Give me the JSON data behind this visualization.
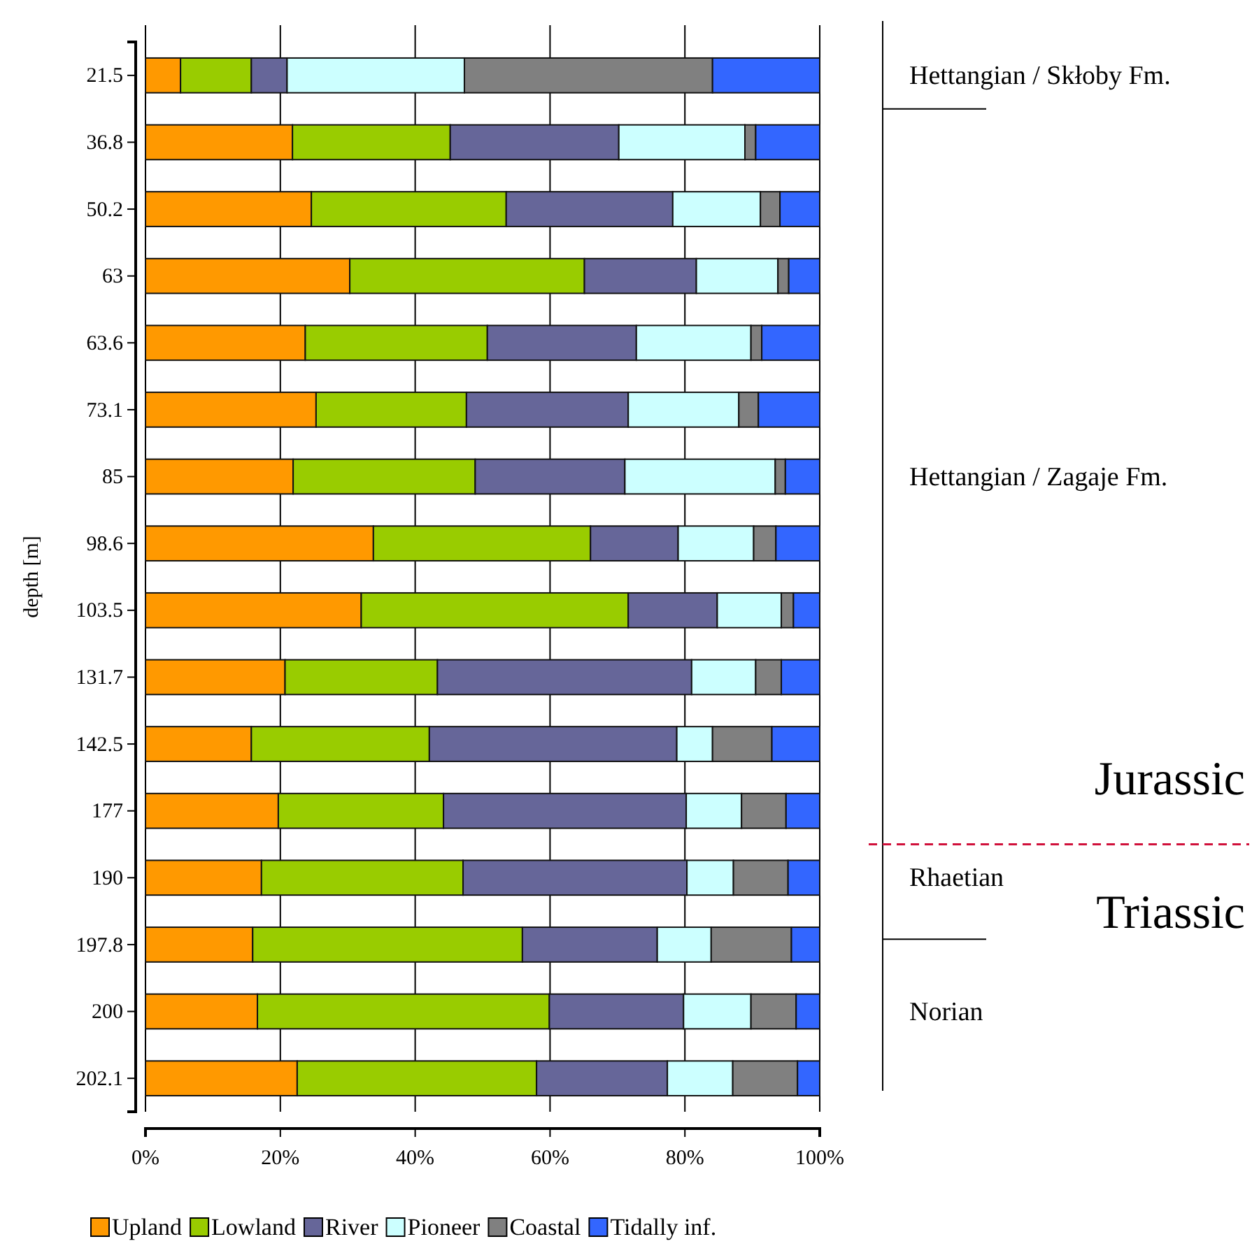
{
  "chart_data": {
    "type": "bar",
    "orientation": "horizontal",
    "stacked": true,
    "ylabel": "depth [m]",
    "categories": [
      "21.5",
      "36.8",
      "50.2",
      "63",
      "63.6",
      "73.1",
      "85",
      "98.6",
      "103.5",
      "131.7",
      "142.5",
      "177",
      "190",
      "197.8",
      "200",
      "202.1"
    ],
    "series": [
      {
        "name": "Upland",
        "color": "#ff9900",
        "values": [
          5.2,
          21.8,
          24.6,
          30.3,
          23.7,
          25.3,
          21.9,
          33.8,
          32.0,
          20.7,
          15.7,
          19.7,
          17.2,
          15.9,
          16.6,
          22.5
        ]
      },
      {
        "name": "Lowland",
        "color": "#99cc00",
        "values": [
          10.5,
          23.4,
          28.9,
          34.8,
          27.0,
          22.3,
          27.0,
          32.2,
          39.6,
          22.6,
          26.4,
          24.5,
          29.9,
          40.0,
          43.3,
          35.5
        ]
      },
      {
        "name": "River",
        "color": "#666699",
        "values": [
          5.3,
          25.0,
          24.7,
          16.6,
          22.1,
          24.0,
          22.2,
          13.0,
          13.2,
          37.7,
          36.7,
          36.0,
          33.2,
          20.0,
          19.9,
          19.4
        ]
      },
      {
        "name": "Pioneer",
        "color": "#ccffff",
        "values": [
          26.3,
          18.7,
          13.0,
          12.1,
          17.0,
          16.4,
          22.3,
          11.2,
          9.5,
          9.5,
          5.3,
          8.2,
          6.9,
          8.0,
          10.0,
          9.7
        ]
      },
      {
        "name": "Coastal",
        "color": "#808080",
        "values": [
          36.8,
          1.6,
          2.9,
          1.6,
          1.6,
          2.9,
          1.5,
          3.3,
          1.8,
          3.8,
          8.8,
          6.6,
          8.1,
          11.9,
          6.7,
          9.6
        ]
      },
      {
        "name": "Tidally inf.",
        "color": "#3366ff",
        "values": [
          15.9,
          9.5,
          5.9,
          4.6,
          8.6,
          9.1,
          5.1,
          6.5,
          3.9,
          5.7,
          7.1,
          5.0,
          4.7,
          4.2,
          3.5,
          3.3
        ]
      }
    ],
    "xlim": [
      0,
      100
    ],
    "xticks": [
      {
        "value": 0,
        "label": "0%"
      },
      {
        "value": 20,
        "label": "20%"
      },
      {
        "value": 40,
        "label": "40%"
      },
      {
        "value": 60,
        "label": "60%"
      },
      {
        "value": 80,
        "label": "80%"
      },
      {
        "value": 100,
        "label": "100%"
      }
    ],
    "grid": "x",
    "legend": "bottom",
    "annotations": [
      "Hettangian / Skłoby Fm.",
      "Hettangian / Zagaje Fm.",
      "Jurassic",
      "Triassic",
      "Rhaetian",
      "Norian"
    ]
  }
}
